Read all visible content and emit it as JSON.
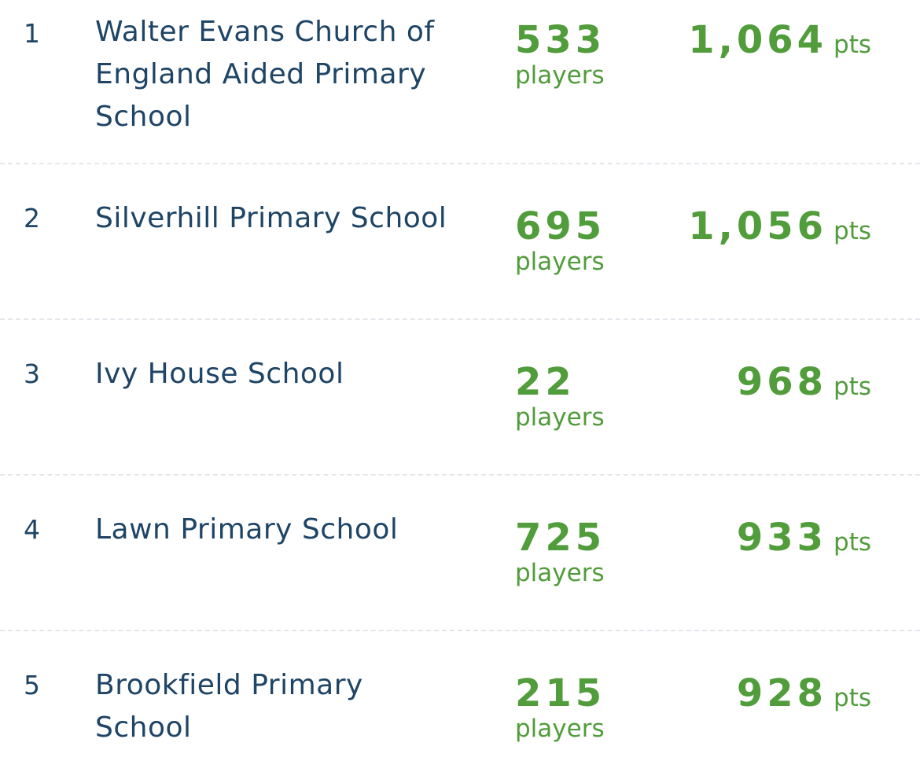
{
  "leaderboard": {
    "rows": [
      {
        "rank": "1",
        "name": "Walter Evans Church of England Aided Primary School",
        "players": "533",
        "players_label": "players",
        "points": "1,064",
        "points_unit": "pts"
      },
      {
        "rank": "2",
        "name": "Silverhill Primary School",
        "players": "695",
        "players_label": "players",
        "points": "1,056",
        "points_unit": "pts"
      },
      {
        "rank": "3",
        "name": "Ivy House School",
        "players": "22",
        "players_label": "players",
        "points": "968",
        "points_unit": "pts"
      },
      {
        "rank": "4",
        "name": "Lawn Primary School",
        "players": "725",
        "players_label": "players",
        "points": "933",
        "points_unit": "pts"
      },
      {
        "rank": "5",
        "name": "Brookfield Primary School",
        "players": "215",
        "players_label": "players",
        "points": "928",
        "points_unit": "pts"
      }
    ]
  },
  "colors": {
    "name_text": "#1e4466",
    "stat_text": "#519c3b",
    "divider": "#e3e6ea",
    "background": "#ffffff"
  }
}
